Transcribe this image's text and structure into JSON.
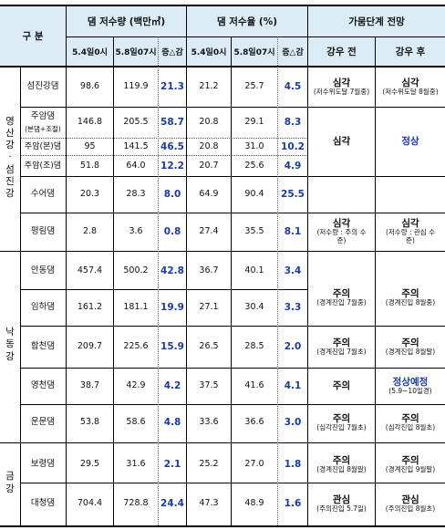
{
  "header": {
    "division": "구 분",
    "storage_group": "댐 저수량 (백만㎥)",
    "rate_group": "댐 저수율 (%)",
    "outlook_group": "가뭄단계 전망",
    "col_may4": "5.4일0시",
    "col_may8": "5.8일07시",
    "col_change": "증△감",
    "col_rate_may4": "5.4일0시",
    "col_rate_may8": "5.8일07시",
    "col_rate_change": "증△감",
    "col_before_rain": "강우 전",
    "col_after_rain": "강우 후"
  },
  "regions": {
    "yeongsan": "영\n산\n강\n·\n섬\n진\n강",
    "nakdong": "낙\n동\n강",
    "geum": "금\n강"
  },
  "rows": [
    {
      "name": "섬진강댐",
      "s4": "98.6",
      "s8": "119.9",
      "sd": "21.3",
      "r4": "21.2",
      "r8": "25.7",
      "rd": "4.5"
    },
    {
      "name": "주암댐",
      "sub": "(본댐+조절)",
      "s4": "146.8",
      "s8": "205.5",
      "sd": "58.7",
      "r4": "20.8",
      "r8": "29.1",
      "rd": "8.3"
    },
    {
      "name": "주암(본)댐",
      "s4": "95",
      "s8": "141.5",
      "sd": "46.5",
      "r4": "20.8",
      "r8": "31.0",
      "rd": "10.2"
    },
    {
      "name": "주암(조)댐",
      "s4": "51.8",
      "s8": "64.0",
      "sd": "12.2",
      "r4": "20.7",
      "r8": "25.6",
      "rd": "4.9"
    },
    {
      "name": "수어댐",
      "s4": "20.3",
      "s8": "28.3",
      "sd": "8.0",
      "r4": "64.9",
      "r8": "90.4",
      "rd": "25.5"
    },
    {
      "name": "평림댐",
      "s4": "2.8",
      "s8": "3.6",
      "sd": "0.8",
      "r4": "27.4",
      "r8": "35.5",
      "rd": "8.1"
    },
    {
      "name": "안동댐",
      "s4": "457.4",
      "s8": "500.2",
      "sd": "42.8",
      "r4": "36.7",
      "r8": "40.1",
      "rd": "3.4"
    },
    {
      "name": "임하댐",
      "s4": "161.2",
      "s8": "181.1",
      "sd": "19.9",
      "r4": "27.1",
      "r8": "30.4",
      "rd": "3.3"
    },
    {
      "name": "합천댐",
      "s4": "209.7",
      "s8": "225.6",
      "sd": "15.9",
      "r4": "26.5",
      "r8": "28.5",
      "rd": "2.0"
    },
    {
      "name": "영천댐",
      "s4": "38.7",
      "s8": "42.9",
      "sd": "4.2",
      "r4": "37.5",
      "r8": "41.6",
      "rd": "4.1"
    },
    {
      "name": "운문댐",
      "s4": "53.8",
      "s8": "58.6",
      "sd": "4.8",
      "r4": "33.6",
      "r8": "36.6",
      "rd": "3.0"
    },
    {
      "name": "보령댐",
      "s4": "29.5",
      "s8": "31.6",
      "sd": "2.1",
      "r4": "25.2",
      "r8": "27.0",
      "rd": "1.8"
    },
    {
      "name": "대청댐",
      "s4": "704.4",
      "s8": "728.8",
      "sd": "24.4",
      "r4": "47.3",
      "r8": "48.9",
      "rd": "1.6"
    }
  ],
  "outlook": {
    "seomjin_before": "심각",
    "seomjin_before_note": "(저수위도달 7월중)",
    "seomjin_after": "심각",
    "seomjin_after_note": "(저수위도달 8월중)",
    "juam_before": "심각",
    "juam_after": "정상",
    "pyeongnim_before": "심각",
    "pyeongnim_before_note": "(저수량 : 주의 수준)",
    "pyeongnim_after": "심각",
    "pyeongnim_after_note": "(저수량 : 관심 수준)",
    "andong_before": "주의",
    "andong_before_note": "(경계진입 7월중)",
    "andong_after": "주의",
    "andong_after_note": "(경계진입 8월중)",
    "hapcheon_before": "주의",
    "hapcheon_before_note": "(경계진입 7월초)",
    "hapcheon_after": "주의",
    "hapcheon_after_note": "(경계진입 8월말)",
    "yeongcheon_before": "주의",
    "yeongcheon_after": "정상예정",
    "yeongcheon_after_note": "(5.9~10일경)",
    "unmun_before": "주의",
    "unmun_before_note": "(심각진입 7월초)",
    "unmun_after": "주의",
    "unmun_after_note": "(심각진입 8월초)",
    "boryeong_before": "주의",
    "boryeong_before_note": "(경계진입 8월말)",
    "boryeong_after": "주의",
    "boryeong_after_note": "(경계진입 9월말)",
    "daecheong_before": "관심",
    "daecheong_before_note": "(주의진입 5.7일)",
    "daecheong_after": "관심",
    "daecheong_after_note": "(주의진입 8월초)"
  }
}
